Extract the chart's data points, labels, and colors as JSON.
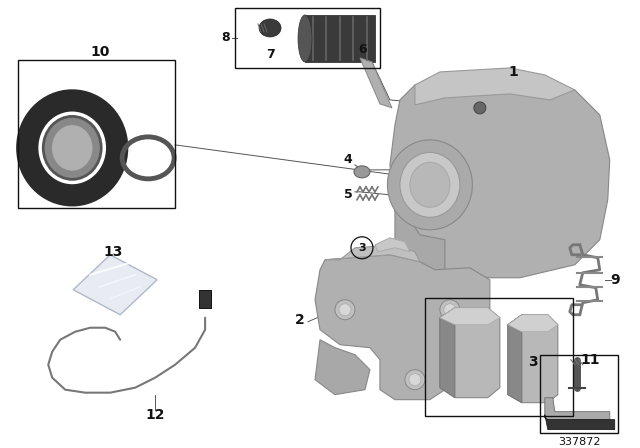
{
  "background_color": "#ffffff",
  "part_number": "337872",
  "gray": "#aaaaaa",
  "dark_gray": "#777777",
  "light_gray": "#cccccc",
  "black": "#000000"
}
